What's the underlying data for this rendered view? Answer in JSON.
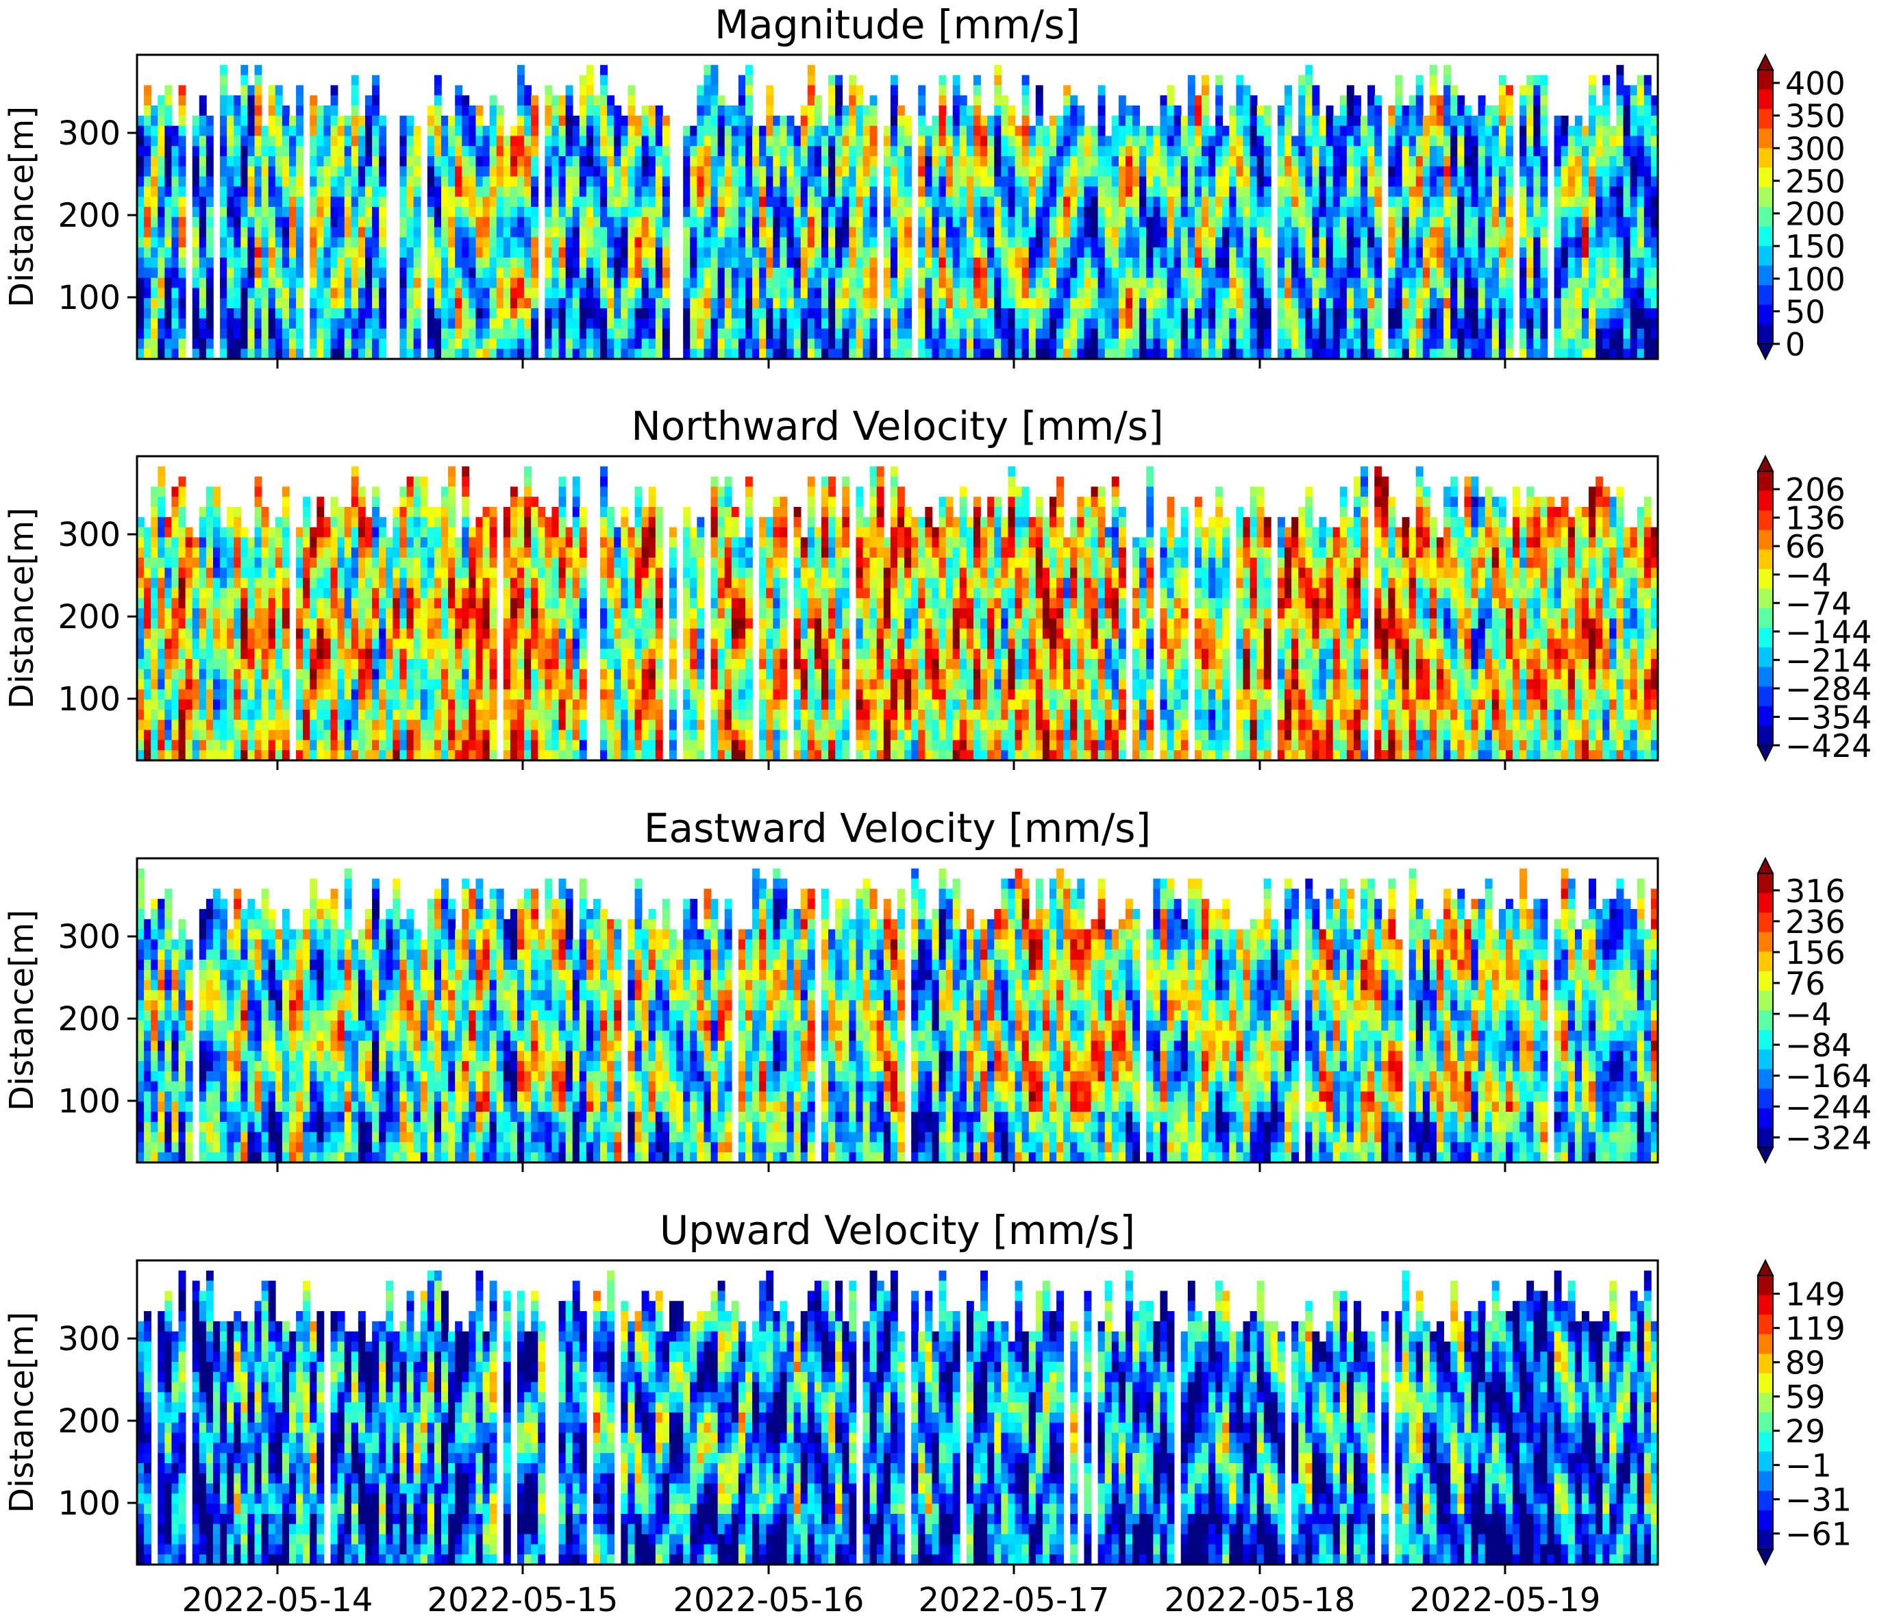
{
  "chart_data": [
    {
      "type": "heatmap",
      "title": "Magnitude [mm/s]",
      "ylabel": "Distance[m]",
      "xlabel": "",
      "x_ticks": [
        "2022-05-14",
        "2022-05-15",
        "2022-05-16",
        "2022-05-17",
        "2022-05-18",
        "2022-05-19"
      ],
      "x_range": [
        "2022-05-13T10:00",
        "2022-05-19T14:00"
      ],
      "y_ticks": [
        100,
        200,
        300
      ],
      "ylim": [
        25,
        395
      ],
      "colorbar": {
        "ticks": [
          400,
          350,
          300,
          250,
          200,
          150,
          100,
          50,
          0
        ],
        "range": [
          0,
          420
        ],
        "extend": "both"
      },
      "colormap": "jet",
      "seed": 11,
      "bias": -0.12
    },
    {
      "type": "heatmap",
      "title": "Northward Velocity [mm/s]",
      "ylabel": "Distance[m]",
      "xlabel": "",
      "x_ticks": [
        "2022-05-14",
        "2022-05-15",
        "2022-05-16",
        "2022-05-17",
        "2022-05-18",
        "2022-05-19"
      ],
      "x_range": [
        "2022-05-13T10:00",
        "2022-05-19T14:00"
      ],
      "y_ticks": [
        100,
        200,
        300
      ],
      "ylim": [
        25,
        395
      ],
      "colorbar": {
        "ticks": [
          206,
          136,
          66,
          -4,
          -74,
          -144,
          -214,
          -284,
          -354,
          -424
        ],
        "range": [
          -424,
          250
        ],
        "extend": "both"
      },
      "colormap": "jet",
      "seed": 23,
      "bias": 0.12
    },
    {
      "type": "heatmap",
      "title": "Eastward Velocity [mm/s]",
      "ylabel": "Distance[m]",
      "xlabel": "",
      "x_ticks": [
        "2022-05-14",
        "2022-05-15",
        "2022-05-16",
        "2022-05-17",
        "2022-05-18",
        "2022-05-19"
      ],
      "x_range": [
        "2022-05-13T10:00",
        "2022-05-19T14:00"
      ],
      "y_ticks": [
        100,
        200,
        300
      ],
      "ylim": [
        25,
        395
      ],
      "colorbar": {
        "ticks": [
          316,
          236,
          156,
          76,
          -4,
          -84,
          -164,
          -244,
          -324
        ],
        "range": [
          -350,
          360
        ],
        "extend": "both"
      },
      "colormap": "jet",
      "seed": 37,
      "bias": -0.05
    },
    {
      "type": "heatmap",
      "title": "Upward Velocity [mm/s]",
      "ylabel": "Distance[m]",
      "xlabel": "",
      "x_ticks": [
        "2022-05-14",
        "2022-05-15",
        "2022-05-16",
        "2022-05-17",
        "2022-05-18",
        "2022-05-19"
      ],
      "x_range": [
        "2022-05-13T10:00",
        "2022-05-19T14:00"
      ],
      "y_ticks": [
        100,
        200,
        300
      ],
      "ylim": [
        25,
        395
      ],
      "colorbar": {
        "ticks": [
          149,
          119,
          89,
          59,
          29,
          -1,
          -31,
          -61
        ],
        "range": [
          -75,
          165
        ],
        "extend": "both"
      },
      "colormap": "jet",
      "seed": 53,
      "bias": -0.22
    }
  ]
}
